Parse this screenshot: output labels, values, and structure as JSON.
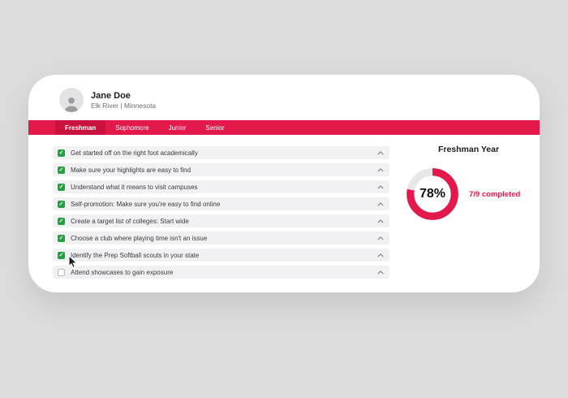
{
  "profile": {
    "name": "Jane Doe",
    "location": "Elk River | Minnesota"
  },
  "tabs": [
    {
      "label": "Freshman",
      "active": true
    },
    {
      "label": "Sophomore",
      "active": false
    },
    {
      "label": "Junior",
      "active": false
    },
    {
      "label": "Senior",
      "active": false
    }
  ],
  "checklist": {
    "items": [
      {
        "label": "Get started off on the right foot academically",
        "checked": true
      },
      {
        "label": "Make sure your highlights are easy to find",
        "checked": true
      },
      {
        "label": "Understand what it means to visit campuses",
        "checked": true
      },
      {
        "label": "Self-promotion: Make sure you're easy to find online",
        "checked": true
      },
      {
        "label": "Create a target list of colleges: Start wide",
        "checked": true
      },
      {
        "label": "Choose a club where playing time isn't an issue",
        "checked": true
      },
      {
        "label": "Identify the Prep Softball scouts in your state",
        "checked": true
      },
      {
        "label": "Attend showcases to gain exposure",
        "checked": false
      }
    ]
  },
  "progress": {
    "title": "Freshman Year",
    "percent": 78,
    "percent_label": "78%",
    "completed_label": "7/9 completed"
  },
  "colors": {
    "accent": "#e4194b",
    "tab_active": "#c9123e",
    "check_green": "#23a042",
    "donut_track": "#e7e7ea",
    "chevron_gray": "#7a7a80"
  }
}
